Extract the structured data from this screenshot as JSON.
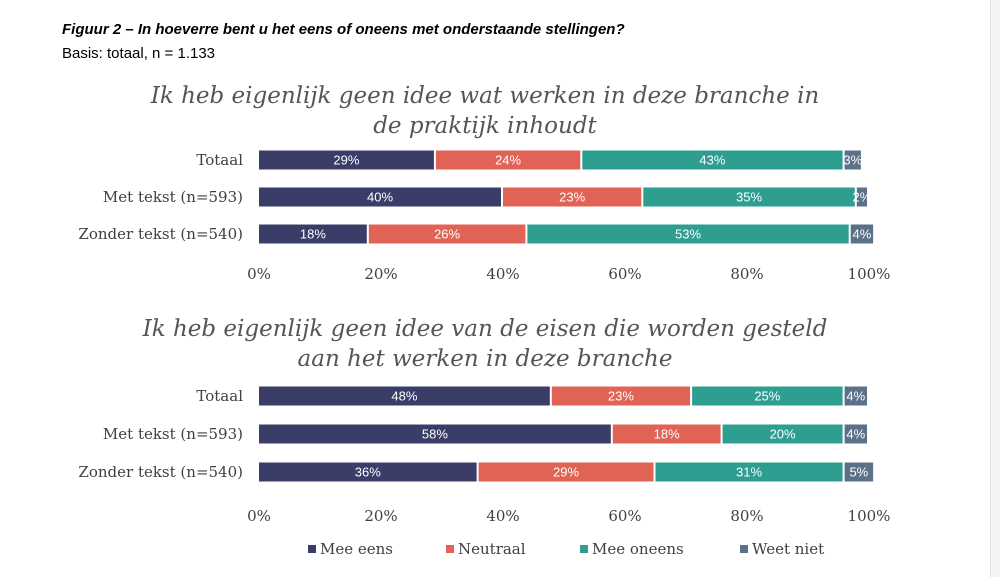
{
  "figure": {
    "title": "Figuur 2 – In hoeverre bent u het eens of oneens met onderstaande stellingen?",
    "subtitle": "Basis: totaal, n = 1.133"
  },
  "colors": {
    "Mee eens": "#3a3d68",
    "Neutraal": "#e06356",
    "Mee oneens": "#2e9e91",
    "Weet niet": "#5b7089"
  },
  "legend": {
    "position": "bottom",
    "items": [
      "Mee eens",
      "Neutraal",
      "Mee oneens",
      "Weet niet"
    ]
  },
  "chart_data": [
    {
      "type": "bar",
      "orientation": "horizontal",
      "stacked": true,
      "title_lines": [
        "Ik heb eigenlijk geen idee wat werken in deze branche in",
        "de praktijk inhoudt"
      ],
      "categories": [
        "Totaal",
        "Met tekst (n=593)",
        "Zonder tekst (n=540)"
      ],
      "series": [
        {
          "name": "Mee eens",
          "values": [
            29,
            40,
            18
          ]
        },
        {
          "name": "Neutraal",
          "values": [
            24,
            23,
            26
          ]
        },
        {
          "name": "Mee oneens",
          "values": [
            43,
            35,
            53
          ]
        },
        {
          "name": "Weet niet",
          "values": [
            3,
            2,
            4
          ]
        }
      ],
      "xlim": [
        0,
        100
      ],
      "x_ticks": [
        "0%",
        "20%",
        "40%",
        "60%",
        "80%",
        "100%"
      ],
      "grid": false
    },
    {
      "type": "bar",
      "orientation": "horizontal",
      "stacked": true,
      "title_lines": [
        "Ik heb eigenlijk geen idee van de eisen die worden gesteld",
        "aan het werken in deze branche"
      ],
      "categories": [
        "Totaal",
        "Met tekst (n=593)",
        "Zonder tekst (n=540)"
      ],
      "series": [
        {
          "name": "Mee eens",
          "values": [
            48,
            58,
            36
          ]
        },
        {
          "name": "Neutraal",
          "values": [
            23,
            18,
            29
          ]
        },
        {
          "name": "Mee oneens",
          "values": [
            25,
            20,
            31
          ]
        },
        {
          "name": "Weet niet",
          "values": [
            4,
            4,
            5
          ]
        }
      ],
      "xlim": [
        0,
        100
      ],
      "x_ticks": [
        "0%",
        "20%",
        "40%",
        "60%",
        "80%",
        "100%"
      ],
      "grid": false
    }
  ]
}
